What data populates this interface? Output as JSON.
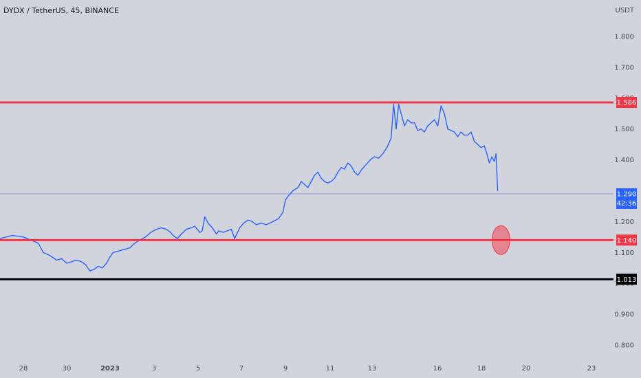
{
  "chart_data": {
    "type": "line",
    "title": "DYDX / TetherUS, 45, BINANCE",
    "unit_label": "USDT",
    "ylim": [
      0.76,
      1.9
    ],
    "y_ticks": [
      {
        "v": 1.8,
        "label": "1.800"
      },
      {
        "v": 1.7,
        "label": "1.700"
      },
      {
        "v": 1.6,
        "label": "1.600"
      },
      {
        "v": 1.5,
        "label": "1.500"
      },
      {
        "v": 1.4,
        "label": "1.400"
      },
      {
        "v": 1.2,
        "label": "1.200"
      },
      {
        "v": 1.1,
        "label": "1.100"
      },
      {
        "v": 1.0,
        "label": "1.000"
      },
      {
        "v": 0.9,
        "label": "0.900"
      },
      {
        "v": 0.8,
        "label": "0.800"
      }
    ],
    "x_ticks": [
      {
        "label": "28",
        "bold": false
      },
      {
        "label": "30",
        "bold": false
      },
      {
        "label": "2023",
        "bold": true
      },
      {
        "label": "3",
        "bold": false
      },
      {
        "label": "5",
        "bold": false
      },
      {
        "label": "7",
        "bold": false
      },
      {
        "label": "9",
        "bold": false
      },
      {
        "label": "11",
        "bold": false
      },
      {
        "label": "13",
        "bold": false
      },
      {
        "label": "16",
        "bold": false
      },
      {
        "label": "18",
        "bold": false
      },
      {
        "label": "20",
        "bold": false
      },
      {
        "label": "23",
        "bold": false
      }
    ],
    "series": [
      {
        "color": "#2962ff",
        "points": [
          [
            0,
            1.145
          ],
          [
            1.5,
            1.155
          ],
          [
            2.8,
            1.15
          ],
          [
            4.6,
            1.13
          ],
          [
            5.2,
            1.1
          ],
          [
            6,
            1.09
          ],
          [
            6.8,
            1.075
          ],
          [
            7.4,
            1.08
          ],
          [
            8,
            1.065
          ],
          [
            8.6,
            1.07
          ],
          [
            9.2,
            1.075
          ],
          [
            9.8,
            1.07
          ],
          [
            10.3,
            1.06
          ],
          [
            10.8,
            1.04
          ],
          [
            11.3,
            1.045
          ],
          [
            11.8,
            1.055
          ],
          [
            12.3,
            1.05
          ],
          [
            12.8,
            1.065
          ],
          [
            13.2,
            1.085
          ],
          [
            13.6,
            1.1
          ],
          [
            14.3,
            1.105
          ],
          [
            15,
            1.11
          ],
          [
            15.6,
            1.115
          ],
          [
            16.2,
            1.13
          ],
          [
            16.8,
            1.14
          ],
          [
            17.5,
            1.15
          ],
          [
            18.1,
            1.165
          ],
          [
            18.8,
            1.175
          ],
          [
            19.4,
            1.18
          ],
          [
            20,
            1.175
          ],
          [
            20.5,
            1.165
          ],
          [
            20.8,
            1.155
          ],
          [
            21.3,
            1.145
          ],
          [
            21.8,
            1.16
          ],
          [
            22.4,
            1.175
          ],
          [
            23,
            1.18
          ],
          [
            23.4,
            1.185
          ],
          [
            24,
            1.165
          ],
          [
            24.3,
            1.17
          ],
          [
            24.6,
            1.215
          ],
          [
            25,
            1.195
          ],
          [
            25.5,
            1.18
          ],
          [
            26,
            1.16
          ],
          [
            26.3,
            1.17
          ],
          [
            26.8,
            1.165
          ],
          [
            27.3,
            1.17
          ],
          [
            27.8,
            1.175
          ],
          [
            28.2,
            1.145
          ],
          [
            28.8,
            1.18
          ],
          [
            29.3,
            1.195
          ],
          [
            29.8,
            1.205
          ],
          [
            30.3,
            1.2
          ],
          [
            30.8,
            1.19
          ],
          [
            31.4,
            1.195
          ],
          [
            32,
            1.19
          ],
          [
            32.8,
            1.2
          ],
          [
            33.5,
            1.21
          ],
          [
            34,
            1.23
          ],
          [
            34.3,
            1.27
          ],
          [
            34.7,
            1.285
          ],
          [
            35.2,
            1.3
          ],
          [
            35.8,
            1.31
          ],
          [
            36.2,
            1.33
          ],
          [
            36.6,
            1.32
          ],
          [
            37,
            1.31
          ],
          [
            37.4,
            1.33
          ],
          [
            37.8,
            1.35
          ],
          [
            38.2,
            1.36
          ],
          [
            38.6,
            1.34
          ],
          [
            39,
            1.33
          ],
          [
            39.4,
            1.325
          ],
          [
            39.8,
            1.33
          ],
          [
            40.2,
            1.34
          ],
          [
            40.6,
            1.36
          ],
          [
            41,
            1.375
          ],
          [
            41.4,
            1.37
          ],
          [
            41.8,
            1.39
          ],
          [
            42.2,
            1.38
          ],
          [
            42.6,
            1.36
          ],
          [
            43,
            1.35
          ],
          [
            43.5,
            1.37
          ],
          [
            44,
            1.385
          ],
          [
            44.5,
            1.4
          ],
          [
            45,
            1.41
          ],
          [
            45.5,
            1.405
          ],
          [
            46,
            1.42
          ],
          [
            46.5,
            1.44
          ],
          [
            47,
            1.47
          ],
          [
            47.3,
            1.58
          ],
          [
            47.6,
            1.5
          ],
          [
            47.9,
            1.58
          ],
          [
            48.2,
            1.55
          ],
          [
            48.6,
            1.51
          ],
          [
            49,
            1.53
          ],
          [
            49.4,
            1.52
          ],
          [
            49.8,
            1.52
          ],
          [
            50.2,
            1.495
          ],
          [
            50.6,
            1.5
          ],
          [
            51,
            1.49
          ],
          [
            51.4,
            1.51
          ],
          [
            51.8,
            1.52
          ],
          [
            52.2,
            1.53
          ],
          [
            52.6,
            1.51
          ],
          [
            53,
            1.575
          ],
          [
            53.4,
            1.55
          ],
          [
            53.8,
            1.5
          ],
          [
            54.2,
            1.495
          ],
          [
            54.6,
            1.49
          ],
          [
            55,
            1.475
          ],
          [
            55.4,
            1.49
          ],
          [
            55.8,
            1.48
          ],
          [
            56.2,
            1.48
          ],
          [
            56.6,
            1.49
          ],
          [
            57,
            1.46
          ],
          [
            57.4,
            1.45
          ],
          [
            57.8,
            1.44
          ],
          [
            58.2,
            1.445
          ],
          [
            58.5,
            1.42
          ],
          [
            58.8,
            1.39
          ],
          [
            59.1,
            1.41
          ],
          [
            59.4,
            1.395
          ],
          [
            59.6,
            1.42
          ],
          [
            59.8,
            1.3
          ]
        ]
      }
    ],
    "levels": [
      {
        "value": 1.586,
        "label": "1.586",
        "color": "#f23645",
        "width": 3
      },
      {
        "value": 1.14,
        "label": "1.140",
        "color": "#f23645",
        "width": 3
      },
      {
        "value": 1.013,
        "label": "1.013",
        "color": "#000000",
        "width": 3
      }
    ],
    "current": {
      "value": 1.29,
      "label": "1.290",
      "countdown": "42:36",
      "color": "#2962ff"
    },
    "marker": {
      "x": 60.2,
      "y": 1.14,
      "fill": "#e86a75",
      "stroke": "#f23645"
    }
  }
}
